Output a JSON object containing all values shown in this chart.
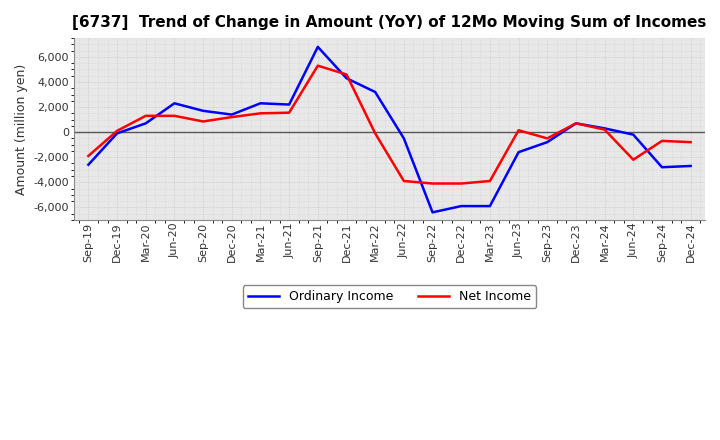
{
  "title": "[6737]  Trend of Change in Amount (YoY) of 12Mo Moving Sum of Incomes",
  "ylabel": "Amount (million yen)",
  "x_labels": [
    "Sep-19",
    "Dec-19",
    "Mar-20",
    "Jun-20",
    "Sep-20",
    "Dec-20",
    "Mar-21",
    "Jun-21",
    "Sep-21",
    "Dec-21",
    "Mar-22",
    "Jun-22",
    "Sep-22",
    "Dec-22",
    "Mar-23",
    "Jun-23",
    "Sep-23",
    "Dec-23",
    "Mar-24",
    "Jun-24",
    "Sep-24",
    "Dec-24"
  ],
  "ordinary_income": [
    -2600,
    -100,
    700,
    2300,
    1700,
    1400,
    2300,
    2200,
    6800,
    4300,
    3200,
    -500,
    -6400,
    -5900,
    -5900,
    -1600,
    -800,
    700,
    300,
    -200,
    -2800,
    -2700
  ],
  "net_income": [
    -1900,
    100,
    1300,
    1300,
    850,
    1200,
    1500,
    1550,
    5300,
    4600,
    -100,
    -3900,
    -4100,
    -4100,
    -3900,
    150,
    -500,
    700,
    200,
    -2200,
    -700,
    -800
  ],
  "ordinary_color": "#0000ff",
  "net_color": "#ff0000",
  "ylim": [
    -7000,
    7500
  ],
  "yticks": [
    -6000,
    -4000,
    -2000,
    0,
    2000,
    4000,
    6000
  ],
  "plot_bg_color": "#e8e8e8",
  "fig_bg_color": "#ffffff",
  "grid_color": "#bbbbbb",
  "zero_line_color": "#555555",
  "line_width": 1.8,
  "title_fontsize": 11,
  "ylabel_fontsize": 9,
  "tick_fontsize": 8,
  "legend_fontsize": 9
}
